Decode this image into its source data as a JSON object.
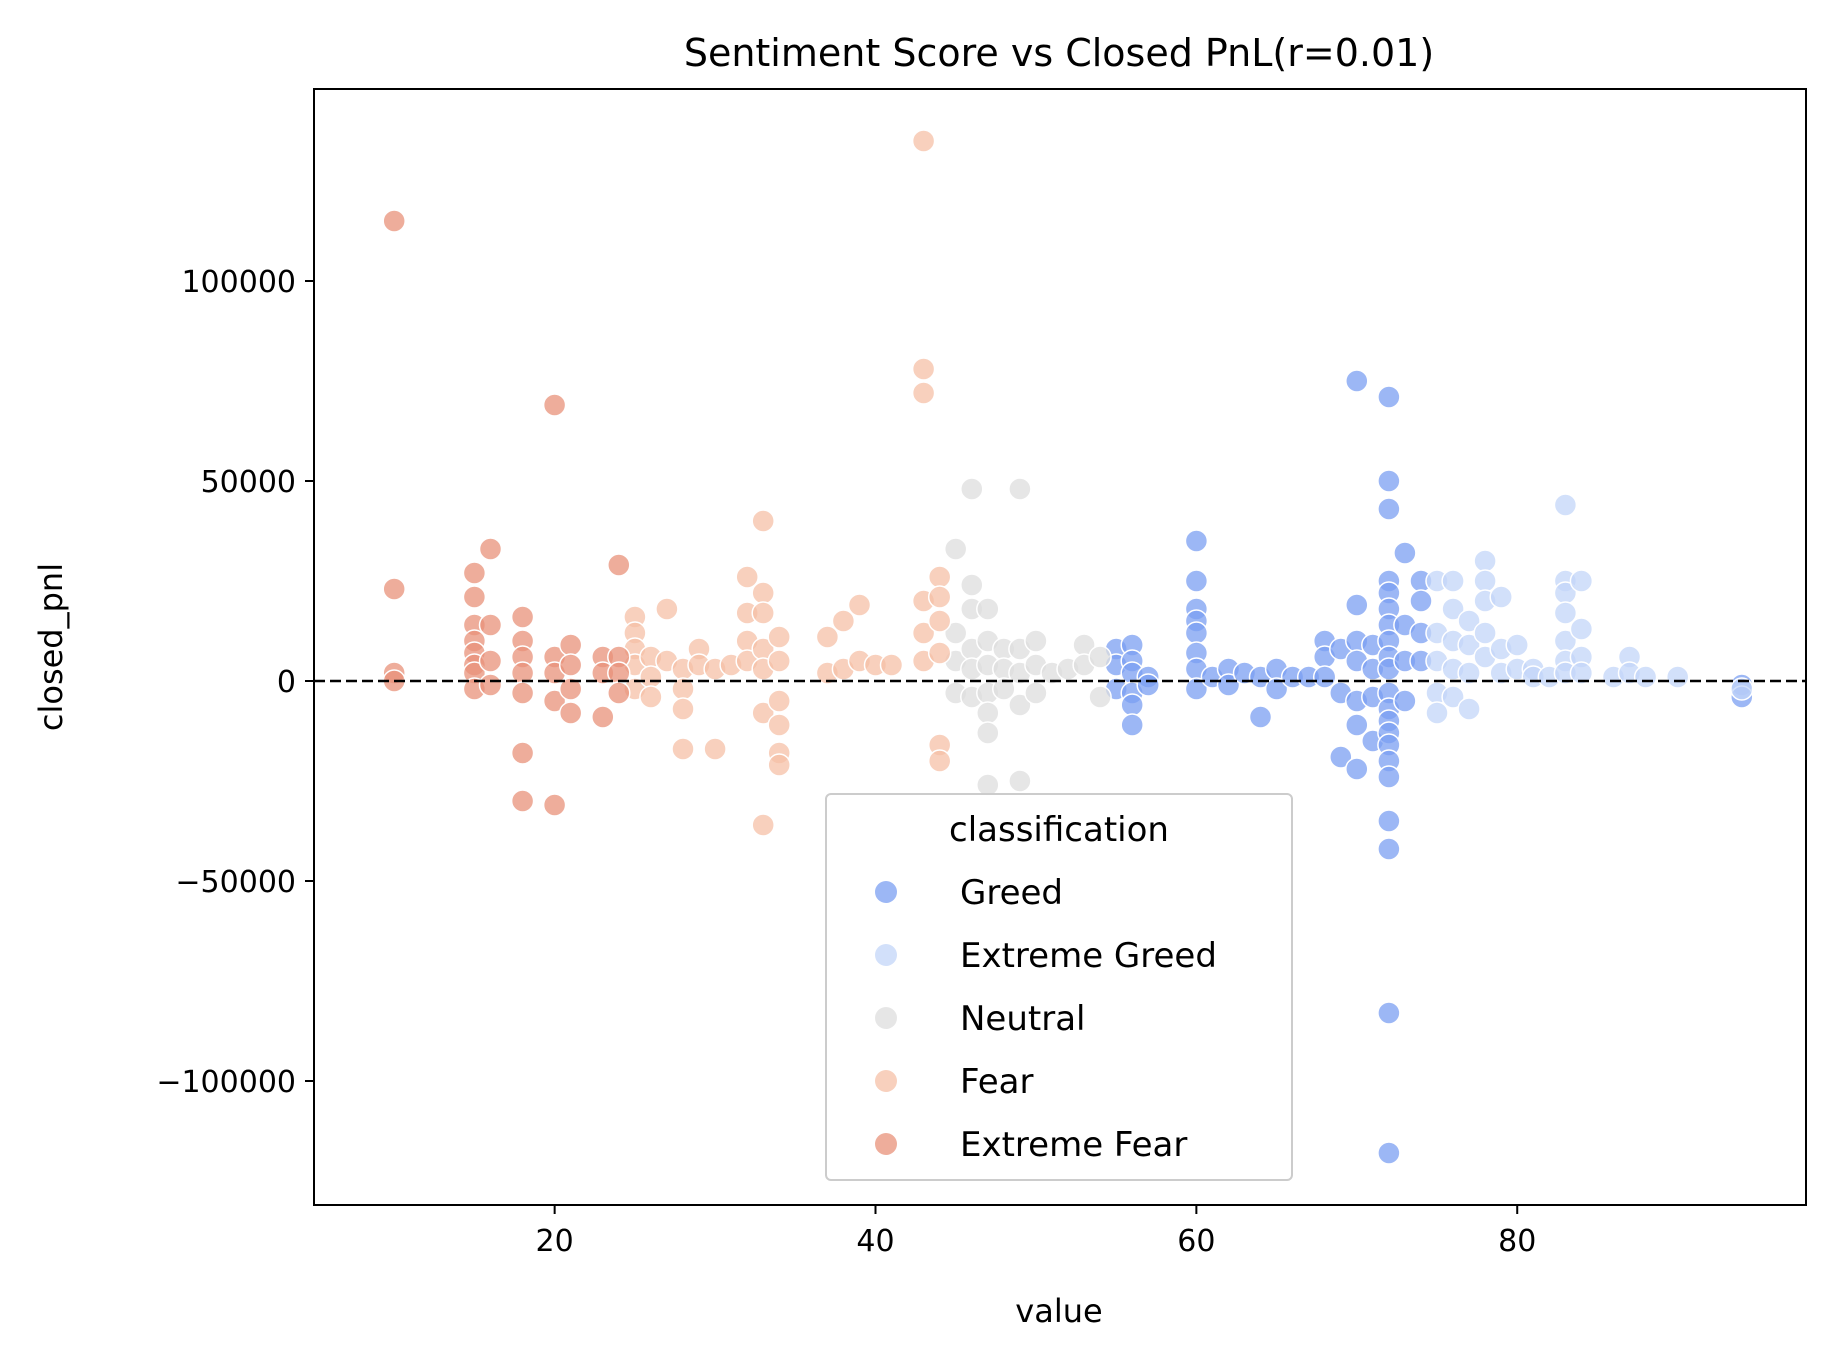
{
  "chart_data": {
    "type": "scatter",
    "title": "Sentiment Score vs Closed PnL(r=0.01)",
    "xlabel": "value",
    "ylabel": "closed_pnl",
    "xlim": [
      5,
      98
    ],
    "ylim": [
      -131000,
      148000
    ],
    "xticks": [
      20,
      40,
      60,
      80
    ],
    "yticks": [
      -100000,
      -50000,
      0,
      50000,
      100000
    ],
    "xtick_labels": [
      "20",
      "40",
      "60",
      "80"
    ],
    "ytick_labels": [
      "−100000",
      "−50000",
      "0",
      "50000",
      "100000"
    ],
    "reference_line": {
      "y": 0,
      "style": "dashed",
      "color": "#000000"
    },
    "grid": false,
    "legend": {
      "title": "classification",
      "placement": "lower-center",
      "entries": [
        "Greed",
        "Extreme Greed",
        "Neutral",
        "Fear",
        "Extreme Fear"
      ]
    },
    "series": [
      {
        "name": "Greed",
        "color": "#7b9ff2",
        "points": [
          [
            55,
            8000
          ],
          [
            55,
            4000
          ],
          [
            55,
            -2000
          ],
          [
            56,
            9000
          ],
          [
            56,
            5000
          ],
          [
            56,
            2000
          ],
          [
            56,
            -3000
          ],
          [
            56,
            -6000
          ],
          [
            56,
            -11000
          ],
          [
            57,
            1000
          ],
          [
            57,
            -1000
          ],
          [
            60,
            35000
          ],
          [
            60,
            25000
          ],
          [
            60,
            18000
          ],
          [
            60,
            15000
          ],
          [
            60,
            12000
          ],
          [
            60,
            7000
          ],
          [
            60,
            3000
          ],
          [
            60,
            -2000
          ],
          [
            61,
            1000
          ],
          [
            62,
            3000
          ],
          [
            62,
            -1000
          ],
          [
            63,
            2000
          ],
          [
            64,
            -9000
          ],
          [
            64,
            1000
          ],
          [
            65,
            3000
          ],
          [
            65,
            -2000
          ],
          [
            66,
            1000
          ],
          [
            67,
            1000
          ],
          [
            68,
            10000
          ],
          [
            68,
            6000
          ],
          [
            68,
            1000
          ],
          [
            69,
            8000
          ],
          [
            69,
            -3000
          ],
          [
            69,
            -19000
          ],
          [
            70,
            75000
          ],
          [
            70,
            19000
          ],
          [
            70,
            10000
          ],
          [
            70,
            5000
          ],
          [
            70,
            -5000
          ],
          [
            70,
            -11000
          ],
          [
            70,
            -22000
          ],
          [
            71,
            9000
          ],
          [
            71,
            3000
          ],
          [
            71,
            -4000
          ],
          [
            71,
            -15000
          ],
          [
            72,
            71000
          ],
          [
            72,
            50000
          ],
          [
            72,
            43000
          ],
          [
            72,
            25000
          ],
          [
            72,
            22000
          ],
          [
            72,
            18000
          ],
          [
            72,
            14000
          ],
          [
            72,
            10000
          ],
          [
            72,
            6000
          ],
          [
            72,
            3000
          ],
          [
            72,
            -3000
          ],
          [
            72,
            -7000
          ],
          [
            72,
            -10000
          ],
          [
            72,
            -13000
          ],
          [
            72,
            -16000
          ],
          [
            72,
            -20000
          ],
          [
            72,
            -24000
          ],
          [
            72,
            -35000
          ],
          [
            72,
            -42000
          ],
          [
            72,
            -83000
          ],
          [
            72,
            -118000
          ],
          [
            73,
            32000
          ],
          [
            73,
            14000
          ],
          [
            73,
            5000
          ],
          [
            73,
            -5000
          ],
          [
            74,
            25000
          ],
          [
            74,
            20000
          ],
          [
            74,
            12000
          ],
          [
            74,
            5000
          ],
          [
            94,
            -1000
          ],
          [
            94,
            -4000
          ]
        ]
      },
      {
        "name": "Extreme Greed",
        "color": "#c3d5f8",
        "points": [
          [
            75,
            25000
          ],
          [
            75,
            12000
          ],
          [
            75,
            5000
          ],
          [
            75,
            -3000
          ],
          [
            75,
            -8000
          ],
          [
            76,
            25000
          ],
          [
            76,
            18000
          ],
          [
            76,
            10000
          ],
          [
            76,
            3000
          ],
          [
            76,
            -4000
          ],
          [
            77,
            15000
          ],
          [
            77,
            9000
          ],
          [
            77,
            2000
          ],
          [
            77,
            -7000
          ],
          [
            78,
            30000
          ],
          [
            78,
            25000
          ],
          [
            78,
            20000
          ],
          [
            78,
            12000
          ],
          [
            78,
            6000
          ],
          [
            79,
            21000
          ],
          [
            79,
            8000
          ],
          [
            79,
            2000
          ],
          [
            80,
            9000
          ],
          [
            80,
            3000
          ],
          [
            81,
            3000
          ],
          [
            81,
            1000
          ],
          [
            82,
            1000
          ],
          [
            83,
            44000
          ],
          [
            83,
            25000
          ],
          [
            83,
            22000
          ],
          [
            83,
            17000
          ],
          [
            83,
            10000
          ],
          [
            83,
            5000
          ],
          [
            83,
            2000
          ],
          [
            84,
            25000
          ],
          [
            84,
            13000
          ],
          [
            84,
            6000
          ],
          [
            84,
            2000
          ],
          [
            86,
            1000
          ],
          [
            87,
            6000
          ],
          [
            87,
            2000
          ],
          [
            88,
            1000
          ],
          [
            90,
            1000
          ],
          [
            94,
            -2000
          ]
        ]
      },
      {
        "name": "Neutral",
        "color": "#dedede",
        "points": [
          [
            45,
            33000
          ],
          [
            45,
            12000
          ],
          [
            45,
            5000
          ],
          [
            45,
            -3000
          ],
          [
            46,
            48000
          ],
          [
            46,
            24000
          ],
          [
            46,
            18000
          ],
          [
            46,
            8000
          ],
          [
            46,
            3000
          ],
          [
            46,
            -4000
          ],
          [
            47,
            18000
          ],
          [
            47,
            10000
          ],
          [
            47,
            4000
          ],
          [
            47,
            -3000
          ],
          [
            47,
            -8000
          ],
          [
            47,
            -13000
          ],
          [
            47,
            -26000
          ],
          [
            48,
            8000
          ],
          [
            48,
            3000
          ],
          [
            48,
            -2000
          ],
          [
            49,
            48000
          ],
          [
            49,
            8000
          ],
          [
            49,
            2000
          ],
          [
            49,
            -6000
          ],
          [
            49,
            -25000
          ],
          [
            50,
            10000
          ],
          [
            50,
            4000
          ],
          [
            50,
            -3000
          ],
          [
            51,
            2000
          ],
          [
            52,
            3000
          ],
          [
            53,
            9000
          ],
          [
            53,
            4000
          ],
          [
            54,
            6000
          ],
          [
            54,
            -4000
          ]
        ]
      },
      {
        "name": "Fear",
        "color": "#f6c0a7",
        "points": [
          [
            25,
            16000
          ],
          [
            25,
            12000
          ],
          [
            25,
            8000
          ],
          [
            25,
            4000
          ],
          [
            25,
            -2000
          ],
          [
            26,
            6000
          ],
          [
            26,
            1000
          ],
          [
            26,
            -4000
          ],
          [
            27,
            18000
          ],
          [
            27,
            5000
          ],
          [
            28,
            3000
          ],
          [
            28,
            -2000
          ],
          [
            28,
            -7000
          ],
          [
            28,
            -17000
          ],
          [
            29,
            8000
          ],
          [
            29,
            4000
          ],
          [
            30,
            3000
          ],
          [
            30,
            -17000
          ],
          [
            31,
            4000
          ],
          [
            32,
            26000
          ],
          [
            32,
            17000
          ],
          [
            32,
            10000
          ],
          [
            32,
            5000
          ],
          [
            33,
            40000
          ],
          [
            33,
            22000
          ],
          [
            33,
            17000
          ],
          [
            33,
            8000
          ],
          [
            33,
            3000
          ],
          [
            33,
            -8000
          ],
          [
            33,
            -36000
          ],
          [
            34,
            11000
          ],
          [
            34,
            5000
          ],
          [
            34,
            -5000
          ],
          [
            34,
            -11000
          ],
          [
            34,
            -18000
          ],
          [
            34,
            -21000
          ],
          [
            37,
            11000
          ],
          [
            37,
            2000
          ],
          [
            38,
            15000
          ],
          [
            38,
            3000
          ],
          [
            39,
            19000
          ],
          [
            39,
            5000
          ],
          [
            40,
            4000
          ],
          [
            41,
            4000
          ],
          [
            43,
            135000
          ],
          [
            43,
            78000
          ],
          [
            43,
            72000
          ],
          [
            43,
            20000
          ],
          [
            43,
            12000
          ],
          [
            43,
            5000
          ],
          [
            44,
            26000
          ],
          [
            44,
            21000
          ],
          [
            44,
            15000
          ],
          [
            44,
            7000
          ],
          [
            44,
            -16000
          ],
          [
            44,
            -20000
          ]
        ]
      },
      {
        "name": "Extreme Fear",
        "color": "#e8917a",
        "points": [
          [
            10,
            115000
          ],
          [
            10,
            23000
          ],
          [
            10,
            2000
          ],
          [
            10,
            0
          ],
          [
            15,
            27000
          ],
          [
            15,
            21000
          ],
          [
            15,
            14000
          ],
          [
            15,
            10000
          ],
          [
            15,
            7000
          ],
          [
            15,
            4000
          ],
          [
            15,
            2000
          ],
          [
            15,
            -2000
          ],
          [
            16,
            33000
          ],
          [
            16,
            14000
          ],
          [
            16,
            5000
          ],
          [
            16,
            -1000
          ],
          [
            18,
            16000
          ],
          [
            18,
            10000
          ],
          [
            18,
            6000
          ],
          [
            18,
            2000
          ],
          [
            18,
            -3000
          ],
          [
            18,
            -18000
          ],
          [
            18,
            -30000
          ],
          [
            20,
            69000
          ],
          [
            20,
            6000
          ],
          [
            20,
            2000
          ],
          [
            20,
            -5000
          ],
          [
            20,
            -31000
          ],
          [
            21,
            9000
          ],
          [
            21,
            4000
          ],
          [
            21,
            -2000
          ],
          [
            21,
            -8000
          ],
          [
            23,
            6000
          ],
          [
            23,
            2000
          ],
          [
            23,
            -9000
          ],
          [
            24,
            29000
          ],
          [
            24,
            6000
          ],
          [
            24,
            2000
          ],
          [
            24,
            -3000
          ]
        ]
      }
    ]
  }
}
